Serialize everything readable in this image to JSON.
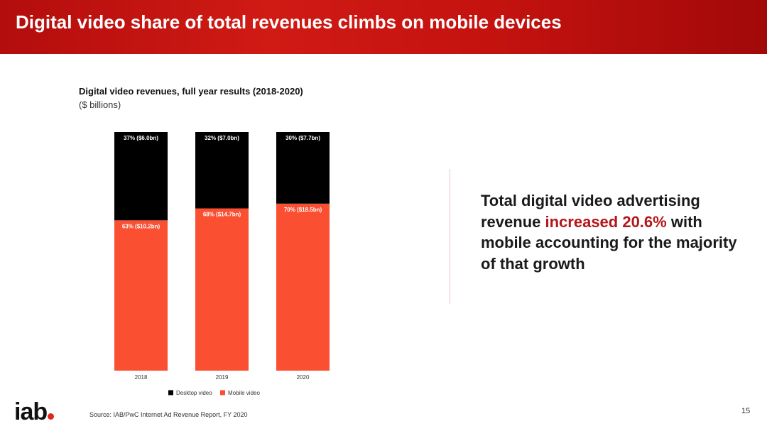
{
  "header": {
    "title": "Digital video share of total revenues climbs on mobile devices"
  },
  "colors": {
    "header_red": "#c4120f",
    "desktop": "#000000",
    "mobile": "#fa4f31",
    "highlight": "#b3161b"
  },
  "chart_data": {
    "type": "bar",
    "stacked": true,
    "normalized_100": true,
    "title": "Digital video revenues, full year results (2018-2020)",
    "subtitle": "($ billions)",
    "categories": [
      "2018",
      "2019",
      "2020"
    ],
    "series": [
      {
        "name": "Desktop video",
        "color": "#000000",
        "values": [
          6.0,
          7.0,
          7.7
        ],
        "shares": [
          37,
          32,
          30
        ],
        "labels": [
          "37% ($6.0bn)",
          "32% ($7.0bn)",
          "30% ($7.7bn)"
        ]
      },
      {
        "name": "Mobile video",
        "color": "#fa4f31",
        "values": [
          10.2,
          14.7,
          18.5
        ],
        "shares": [
          63,
          68,
          70
        ],
        "labels": [
          "63% ($10.2bn)",
          "68% ($14.7bn)",
          "70% ($18.5bn)"
        ]
      }
    ],
    "ylim": [
      0,
      100
    ],
    "grid": false,
    "legend": "bottom"
  },
  "callout": {
    "pre": "Total digital video advertising revenue ",
    "highlight": "increased 20.6%",
    "post": " with mobile accounting for the majority of that growth"
  },
  "footer": {
    "logo": "iab",
    "source": "Source: IAB/PwC Internet Ad Revenue Report, FY 2020",
    "page_number": "15"
  }
}
